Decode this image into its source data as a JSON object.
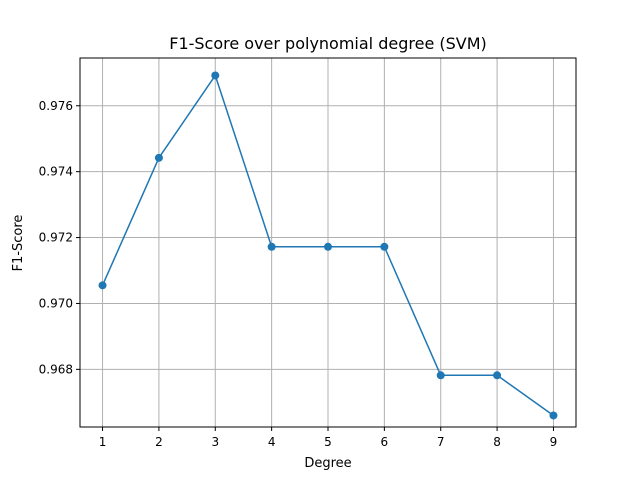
{
  "chart_data": {
    "type": "line",
    "title": "F1-Score over polynomial degree (SVM)",
    "xlabel": "Degree",
    "ylabel": "F1-Score",
    "x": [
      1,
      2,
      3,
      4,
      5,
      6,
      7,
      8,
      9
    ],
    "series": [
      {
        "values": [
          0.97055,
          0.97442,
          0.97692,
          0.97172,
          0.97172,
          0.97172,
          0.96782,
          0.96782,
          0.9666
        ],
        "color": "#1f77b4",
        "marker": "circle"
      }
    ],
    "xticks": [
      "1",
      "2",
      "3",
      "4",
      "5",
      "6",
      "7",
      "8",
      "9"
    ],
    "yticks": [
      "0.968",
      "0.970",
      "0.972",
      "0.974",
      "0.976"
    ],
    "ytick_values": [
      0.968,
      0.97,
      0.972,
      0.974,
      0.976
    ],
    "xlim": [
      0.6,
      9.4
    ],
    "ylim": [
      0.96625,
      0.97745
    ],
    "grid": true,
    "legend": null
  }
}
